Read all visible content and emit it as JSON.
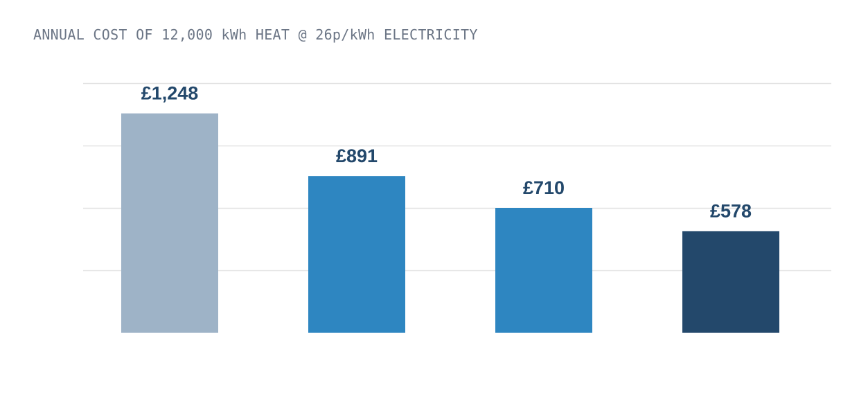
{
  "chart_data": {
    "type": "bar",
    "title": "ANNUAL COST OF 12,000 kWh HEAT @ 26p/kWh ELECTRICITY",
    "categories": [
      "",
      "",
      "",
      ""
    ],
    "values": [
      1248,
      891,
      710,
      578
    ],
    "value_labels": [
      "£1,248",
      "£891",
      "£710",
      "£578"
    ],
    "bar_colors": [
      "#9eb3c7",
      "#2e86c1",
      "#2e86c1",
      "#23486b"
    ],
    "label_color": "#23486b",
    "grid_color": "#e2e2e2",
    "ylim": [
      0,
      1420
    ],
    "grid_values": [
      0,
      355,
      710,
      1065,
      1420
    ],
    "grid": true,
    "legend": "none"
  }
}
